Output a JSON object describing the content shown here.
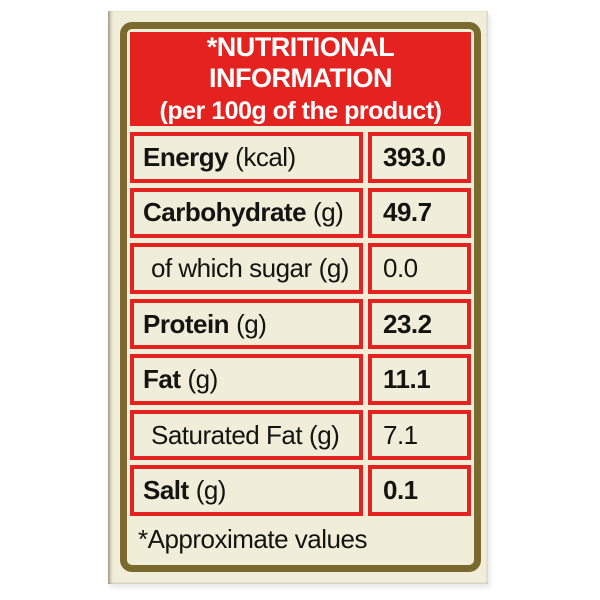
{
  "nutrition_label": {
    "header": {
      "title": "*NUTRITIONAL INFORMATION",
      "subtitle": "(per 100g of the product)"
    },
    "rows": [
      {
        "name": "Energy",
        "unit": "(kcal)",
        "value": "393.0",
        "emphasis": true,
        "indent": false
      },
      {
        "name": "Carbohydrate",
        "unit": "(g)",
        "value": "49.7",
        "emphasis": true,
        "indent": false
      },
      {
        "name": "of which sugar",
        "unit": "(g)",
        "value": "0.0",
        "emphasis": false,
        "indent": true
      },
      {
        "name": "Protein",
        "unit": "(g)",
        "value": "23.2",
        "emphasis": true,
        "indent": false
      },
      {
        "name": "Fat",
        "unit": "(g)",
        "value": "11.1",
        "emphasis": true,
        "indent": false
      },
      {
        "name": "Saturated Fat",
        "unit": "(g)",
        "value": "7.1",
        "emphasis": false,
        "indent": true
      },
      {
        "name": "Salt",
        "unit": "(g)",
        "value": "0.1",
        "emphasis": true,
        "indent": false
      }
    ],
    "footnote": "*Approximate values",
    "colors": {
      "red": "#e42320",
      "cream": "#f0edd8",
      "gold": "#7b6a2e",
      "ink": "#161412"
    }
  }
}
